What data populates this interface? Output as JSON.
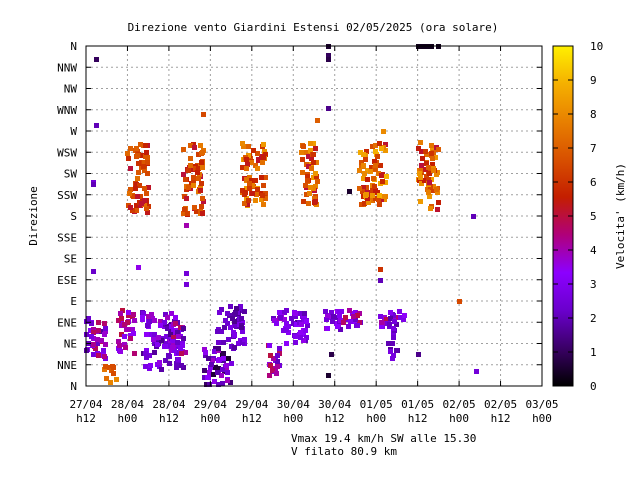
{
  "chart_data": {
    "type": "scatter",
    "title": "Direzione vento Giardini Estensi 02/05/2025 (ora solare)",
    "ylabel": "Direzione",
    "colorbar_label": "Velocita' (km/h)",
    "colorbar_range": [
      0,
      10
    ],
    "colorbar_ticks": [
      "0",
      "1",
      "2",
      "3",
      "4",
      "5",
      "6",
      "7",
      "8",
      "9",
      "10"
    ],
    "colormap": [
      "#000000",
      "#3a0066",
      "#6a00cc",
      "#8c00ff",
      "#b0007a",
      "#c41e00",
      "#d85000",
      "#e88000",
      "#f5b000",
      "#fff000"
    ],
    "ylim": [
      0,
      16
    ],
    "y_tick_labels": [
      "N",
      "NNE",
      "NE",
      "ENE",
      "E",
      "ESE",
      "SE",
      "SSE",
      "S",
      "SSW",
      "SW",
      "WSW",
      "W",
      "WNW",
      "NW",
      "NNW",
      "N"
    ],
    "xlim": [
      0,
      132
    ],
    "x_tick_labels": [
      [
        "27/04",
        "h12"
      ],
      [
        "28/04",
        "h00"
      ],
      [
        "28/04",
        "h12"
      ],
      [
        "29/04",
        "h00"
      ],
      [
        "29/04",
        "h12"
      ],
      [
        "30/04",
        "h00"
      ],
      [
        "30/04",
        "h12"
      ],
      [
        "01/05",
        "h00"
      ],
      [
        "01/05",
        "h12"
      ],
      [
        "02/05",
        "h00"
      ],
      [
        "02/05",
        "h12"
      ],
      [
        "03/05",
        "h00"
      ]
    ],
    "grid": true,
    "footer": [
      "Vmax 19.4 km/h SW alle 15.30",
      "V filato 80.9 km"
    ],
    "clusters": [
      {
        "t": [
          0,
          6
        ],
        "dir": [
          1.2,
          3.2
        ],
        "speed": [
          1.5,
          5
        ]
      },
      {
        "t": [
          5,
          9
        ],
        "dir": [
          0.2,
          1.0
        ],
        "speed": [
          6.5,
          8
        ]
      },
      {
        "t": [
          9,
          14
        ],
        "dir": [
          1.5,
          3.6
        ],
        "speed": [
          3,
          5
        ]
      },
      {
        "t": [
          12,
          18
        ],
        "dir": [
          8.2,
          11.5
        ],
        "speed": [
          5,
          7.5
        ]
      },
      {
        "t": [
          16,
          28
        ],
        "dir": [
          0.8,
          3.5
        ],
        "speed": [
          1.5,
          4
        ]
      },
      {
        "t": [
          25,
          29
        ],
        "dir": [
          1.5,
          3.0
        ],
        "speed": [
          1.5,
          5
        ]
      },
      {
        "t": [
          28,
          34
        ],
        "dir": [
          8.0,
          11.5
        ],
        "speed": [
          5,
          8
        ]
      },
      {
        "t": [
          34,
          42
        ],
        "dir": [
          0.0,
          1.8
        ],
        "speed": [
          0.5,
          4
        ]
      },
      {
        "t": [
          38,
          46
        ],
        "dir": [
          1.8,
          3.8
        ],
        "speed": [
          1.5,
          3
        ]
      },
      {
        "t": [
          45,
          52
        ],
        "dir": [
          8.5,
          11.5
        ],
        "speed": [
          5,
          8.5
        ]
      },
      {
        "t": [
          52,
          56
        ],
        "dir": [
          0.5,
          2.0
        ],
        "speed": [
          2,
          5
        ]
      },
      {
        "t": [
          54,
          64
        ],
        "dir": [
          2.8,
          3.6
        ],
        "speed": [
          1.5,
          4
        ]
      },
      {
        "t": [
          57,
          64
        ],
        "dir": [
          2.0,
          3.2
        ],
        "speed": [
          2,
          3.5
        ]
      },
      {
        "t": [
          62,
          67
        ],
        "dir": [
          8.5,
          11.5
        ],
        "speed": [
          5,
          8.5
        ]
      },
      {
        "t": [
          69,
          74
        ],
        "dir": [
          2.5,
          3.6
        ],
        "speed": [
          2,
          4
        ]
      },
      {
        "t": [
          72,
          80
        ],
        "dir": [
          2.8,
          3.6
        ],
        "speed": [
          2,
          5
        ]
      },
      {
        "t": [
          79,
          87
        ],
        "dir": [
          8.5,
          11.5
        ],
        "speed": [
          5,
          9
        ]
      },
      {
        "t": [
          85,
          92
        ],
        "dir": [
          2.8,
          3.6
        ],
        "speed": [
          2,
          5
        ]
      },
      {
        "t": [
          87,
          90
        ],
        "dir": [
          1.3,
          3.2
        ],
        "speed": [
          1.5,
          3
        ]
      },
      {
        "t": [
          96,
          102
        ],
        "dir": [
          8.3,
          11.5
        ],
        "speed": [
          5,
          8.5
        ]
      }
    ],
    "points": [
      {
        "t": 2,
        "dir": 9.6,
        "speed": 2.5
      },
      {
        "t": 2,
        "dir": 9.5,
        "speed": 2.0
      },
      {
        "t": 2,
        "dir": 5.4,
        "speed": 2.2
      },
      {
        "t": 3,
        "dir": 15.4,
        "speed": 1.0
      },
      {
        "t": 3,
        "dir": 12.3,
        "speed": 2.0
      },
      {
        "t": 15,
        "dir": 5.6,
        "speed": 3.5
      },
      {
        "t": 29,
        "dir": 7.6,
        "speed": 4.0
      },
      {
        "t": 29,
        "dir": 5.3,
        "speed": 2.5
      },
      {
        "t": 29,
        "dir": 4.8,
        "speed": 2.5
      },
      {
        "t": 34,
        "dir": 12.8,
        "speed": 6.5
      },
      {
        "t": 70,
        "dir": 16.0,
        "speed": 0.5
      },
      {
        "t": 70,
        "dir": 15.6,
        "speed": 1.0
      },
      {
        "t": 70,
        "dir": 15.4,
        "speed": 0.8
      },
      {
        "t": 70,
        "dir": 13.1,
        "speed": 1.5
      },
      {
        "t": 70,
        "dir": 0.5,
        "speed": 0.5
      },
      {
        "t": 71,
        "dir": 1.5,
        "speed": 0.8
      },
      {
        "t": 96,
        "dir": 16.0,
        "speed": 0.3
      },
      {
        "t": 97,
        "dir": 16.0,
        "speed": 0.3
      },
      {
        "t": 98,
        "dir": 16.0,
        "speed": 0.3
      },
      {
        "t": 99,
        "dir": 16.0,
        "speed": 0.3
      },
      {
        "t": 100,
        "dir": 16.0,
        "speed": 0.3
      },
      {
        "t": 102,
        "dir": 16.0,
        "speed": 0.3
      },
      {
        "t": 76,
        "dir": 9.2,
        "speed": 0.5
      },
      {
        "t": 67,
        "dir": 12.5,
        "speed": 7.0
      },
      {
        "t": 85,
        "dir": 5.0,
        "speed": 2.0
      },
      {
        "t": 85,
        "dir": 5.5,
        "speed": 6.0
      },
      {
        "t": 113,
        "dir": 0.7,
        "speed": 2.5
      },
      {
        "t": 108,
        "dir": 4.0,
        "speed": 6.5
      },
      {
        "t": 112,
        "dir": 8.0,
        "speed": 2.0
      },
      {
        "t": 96,
        "dir": 1.5,
        "speed": 1.5
      },
      {
        "t": 86,
        "dir": 12.0,
        "speed": 8.0
      }
    ]
  }
}
